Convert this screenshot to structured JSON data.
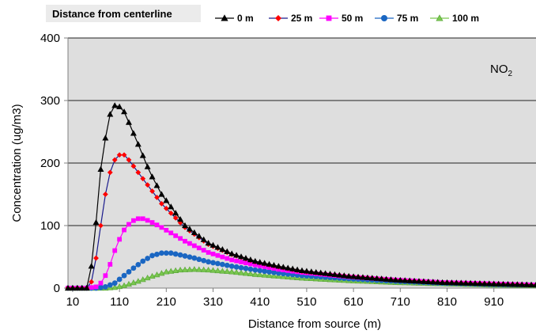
{
  "chart_data": {
    "type": "line",
    "legend_title": "Distance from centerline",
    "annotation": {
      "base": "NO",
      "sub": "2"
    },
    "xlabel": "Distance from source (m)",
    "ylabel": "Concentration (ug/m3)",
    "xlim": [
      0,
      1000
    ],
    "ylim": [
      0,
      400
    ],
    "x_ticks": [
      "10",
      "110",
      "210",
      "310",
      "410",
      "510",
      "610",
      "710",
      "810",
      "910"
    ],
    "y_ticks": [
      "0",
      "100",
      "200",
      "300",
      "400"
    ],
    "grid": "horizontal",
    "legend_position": "top",
    "series": [
      {
        "name": "0 m",
        "color": "#000000",
        "marker": "triangle",
        "points": [
          [
            0,
            0
          ],
          [
            20,
            0
          ],
          [
            40,
            0
          ],
          [
            50,
            35
          ],
          [
            60,
            105
          ],
          [
            70,
            190
          ],
          [
            80,
            240
          ],
          [
            90,
            278
          ],
          [
            100,
            292
          ],
          [
            110,
            290
          ],
          [
            120,
            282
          ],
          [
            130,
            265
          ],
          [
            150,
            230
          ],
          [
            175,
            185
          ],
          [
            200,
            150
          ],
          [
            250,
            100
          ],
          [
            300,
            72
          ],
          [
            350,
            55
          ],
          [
            400,
            43
          ],
          [
            450,
            35
          ],
          [
            500,
            28
          ],
          [
            600,
            19
          ],
          [
            700,
            13
          ],
          [
            800,
            9
          ],
          [
            900,
            7
          ],
          [
            1000,
            5
          ]
        ]
      },
      {
        "name": "25 m",
        "color": "#ff0000",
        "marker": "diamond",
        "points": [
          [
            0,
            0
          ],
          [
            20,
            0
          ],
          [
            40,
            0
          ],
          [
            50,
            10
          ],
          [
            60,
            48
          ],
          [
            70,
            100
          ],
          [
            80,
            150
          ],
          [
            90,
            185
          ],
          [
            100,
            205
          ],
          [
            110,
            213
          ],
          [
            120,
            213
          ],
          [
            130,
            205
          ],
          [
            150,
            185
          ],
          [
            175,
            160
          ],
          [
            200,
            135
          ],
          [
            250,
            97
          ],
          [
            300,
            70
          ],
          [
            350,
            54
          ],
          [
            400,
            42
          ],
          [
            450,
            34
          ],
          [
            500,
            27
          ],
          [
            600,
            19
          ],
          [
            700,
            13
          ],
          [
            800,
            9
          ],
          [
            900,
            7
          ],
          [
            1000,
            5
          ]
        ]
      },
      {
        "name": "50 m",
        "color": "#ff00ff",
        "marker": "square",
        "points": [
          [
            0,
            0
          ],
          [
            40,
            0
          ],
          [
            60,
            2
          ],
          [
            70,
            8
          ],
          [
            80,
            20
          ],
          [
            90,
            38
          ],
          [
            100,
            60
          ],
          [
            110,
            78
          ],
          [
            120,
            93
          ],
          [
            130,
            102
          ],
          [
            140,
            108
          ],
          [
            150,
            111
          ],
          [
            160,
            111
          ],
          [
            175,
            107
          ],
          [
            200,
            97
          ],
          [
            250,
            75
          ],
          [
            300,
            57
          ],
          [
            350,
            45
          ],
          [
            400,
            37
          ],
          [
            450,
            30
          ],
          [
            500,
            25
          ],
          [
            600,
            18
          ],
          [
            700,
            13
          ],
          [
            800,
            9
          ],
          [
            900,
            7
          ],
          [
            1000,
            5
          ]
        ]
      },
      {
        "name": "75 m",
        "color": "#1a66c2",
        "marker": "circle",
        "points": [
          [
            0,
            0
          ],
          [
            60,
            0
          ],
          [
            80,
            2
          ],
          [
            100,
            8
          ],
          [
            120,
            20
          ],
          [
            140,
            32
          ],
          [
            160,
            43
          ],
          [
            180,
            52
          ],
          [
            200,
            56
          ],
          [
            220,
            56
          ],
          [
            240,
            53
          ],
          [
            270,
            48
          ],
          [
            300,
            42
          ],
          [
            350,
            35
          ],
          [
            400,
            29
          ],
          [
            450,
            24
          ],
          [
            500,
            20
          ],
          [
            600,
            15
          ],
          [
            700,
            11
          ],
          [
            800,
            8
          ],
          [
            900,
            6
          ],
          [
            1000,
            5
          ]
        ]
      },
      {
        "name": "100 m",
        "color": "#7ac74f",
        "marker": "triangle-open",
        "points": [
          [
            0,
            0
          ],
          [
            80,
            0
          ],
          [
            100,
            1
          ],
          [
            120,
            4
          ],
          [
            150,
            11
          ],
          [
            180,
            19
          ],
          [
            210,
            26
          ],
          [
            240,
            29
          ],
          [
            270,
            30
          ],
          [
            300,
            29
          ],
          [
            350,
            26
          ],
          [
            400,
            22
          ],
          [
            450,
            19
          ],
          [
            500,
            16
          ],
          [
            600,
            12
          ],
          [
            700,
            9
          ],
          [
            800,
            7
          ],
          [
            900,
            5
          ],
          [
            1000,
            4
          ]
        ]
      }
    ]
  }
}
